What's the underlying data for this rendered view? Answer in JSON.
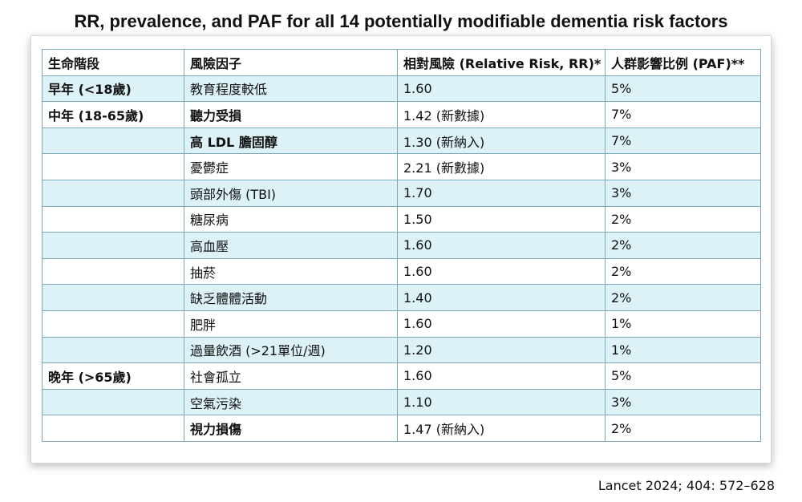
{
  "title": "RR, prevalence, and PAF for all 14 potentially modifiable dementia risk factors",
  "headers": [
    "生命階段",
    "風險因子",
    "相對風險 (Relative Risk, RR)*",
    "人群影響比例 (PAF)**"
  ],
  "rows": [
    {
      "stage": "早年 (<18歲)",
      "factor": "教育程度較低",
      "rr": "1.60",
      "paf": "5%"
    },
    {
      "stage": "中年 (18-65歲)",
      "factor": "聽力受損",
      "rr": "1.42 (新數據)",
      "paf": "7%"
    },
    {
      "stage": "",
      "factor": "高 LDL 膽固醇",
      "rr": "1.30 (新納入)",
      "paf": "7%"
    },
    {
      "stage": "",
      "factor": "憂鬱症",
      "rr": "2.21 (新數據)",
      "paf": "3%"
    },
    {
      "stage": "",
      "factor": "頭部外傷 (TBI)",
      "rr": "1.70",
      "paf": "3%"
    },
    {
      "stage": "",
      "factor": "糖尿病",
      "rr": "1.50",
      "paf": "2%"
    },
    {
      "stage": "",
      "factor": "高血壓",
      "rr": "1.60",
      "paf": "2%"
    },
    {
      "stage": "",
      "factor": "抽菸",
      "rr": "1.60",
      "paf": "2%"
    },
    {
      "stage": "",
      "factor": "缺乏體體活動",
      "rr": "1.40",
      "paf": "2%"
    },
    {
      "stage": "",
      "factor": "肥胖",
      "rr": "1.60",
      "paf": "1%"
    },
    {
      "stage": "",
      "factor": "過量飲酒 (>21單位/週)",
      "rr": "1.20",
      "paf": "1%"
    },
    {
      "stage": "晚年 (>65歲)",
      "factor": "社會孤立",
      "rr": "1.60",
      "paf": "5%"
    },
    {
      "stage": "",
      "factor": "空氣污染",
      "rr": "1.10",
      "paf": "3%"
    },
    {
      "stage": "",
      "factor": "視力損傷",
      "rr": "1.47 (新納入)",
      "paf": "2%"
    }
  ],
  "citation": "Lancet 2024; 404: 572–628",
  "colors": {
    "row_alt": "#dcf2f7",
    "border": "#7fa8b6"
  }
}
